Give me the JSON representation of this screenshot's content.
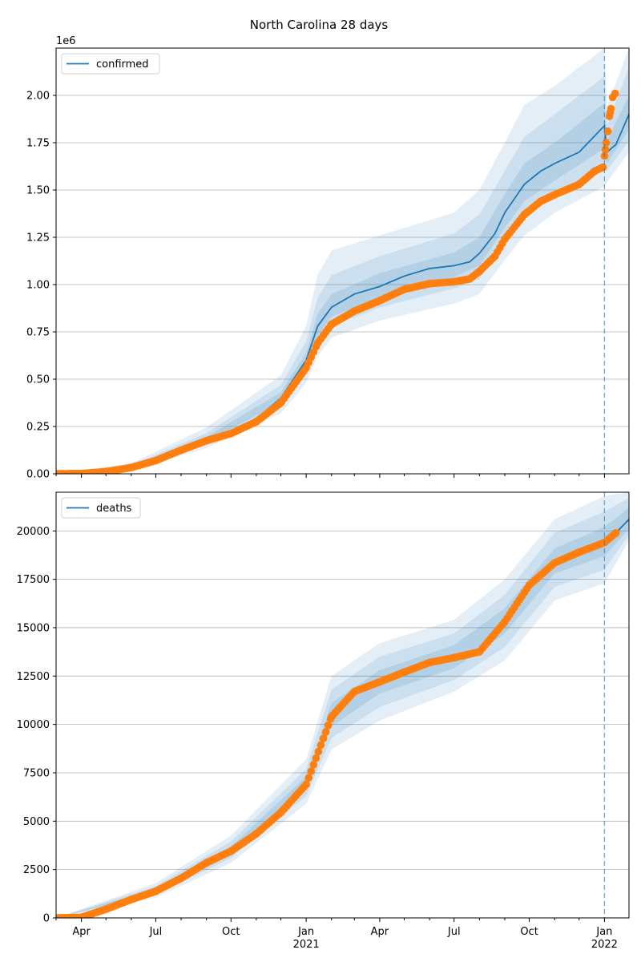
{
  "figure": {
    "title": "North Carolina 28 days"
  },
  "colors": {
    "median_line": "#1f77b4",
    "observed": "#ff7f0e",
    "band": "#1f77b4",
    "grid": "#b0b0b0",
    "forecast_line": "#1f77b4"
  },
  "chart_data": [
    {
      "type": "line",
      "legend": "confirmed",
      "legend_position": "upper-left",
      "multiplier_label": "1e6",
      "x_type": "date",
      "xlim": [
        "2020-03-01",
        "2022-01-31"
      ],
      "ylim": [
        0,
        2250000
      ],
      "y_ticks": [
        0,
        250000,
        500000,
        750000,
        1000000,
        1250000,
        1500000,
        1750000,
        2000000
      ],
      "y_tick_labels": [
        "0.00",
        "0.25",
        "0.50",
        "0.75",
        "1.00",
        "1.25",
        "1.50",
        "1.75",
        "2.00"
      ],
      "grid": "horizontal",
      "forecast_date": "2022-01-01",
      "median": [
        [
          "2020-03-01",
          0
        ],
        [
          "2020-04-01",
          2000
        ],
        [
          "2020-05-01",
          12000
        ],
        [
          "2020-06-01",
          35000
        ],
        [
          "2020-07-01",
          75000
        ],
        [
          "2020-08-01",
          130000
        ],
        [
          "2020-09-01",
          180000
        ],
        [
          "2020-10-01",
          218000
        ],
        [
          "2020-11-01",
          290000
        ],
        [
          "2020-12-01",
          400000
        ],
        [
          "2021-01-01",
          600000
        ],
        [
          "2021-01-15",
          780000
        ],
        [
          "2021-02-01",
          880000
        ],
        [
          "2021-03-01",
          950000
        ],
        [
          "2021-04-01",
          990000
        ],
        [
          "2021-05-01",
          1045000
        ],
        [
          "2021-06-01",
          1085000
        ],
        [
          "2021-07-01",
          1100000
        ],
        [
          "2021-07-20",
          1120000
        ],
        [
          "2021-08-01",
          1165000
        ],
        [
          "2021-08-20",
          1270000
        ],
        [
          "2021-09-01",
          1380000
        ],
        [
          "2021-09-25",
          1530000
        ],
        [
          "2021-10-15",
          1600000
        ],
        [
          "2021-11-01",
          1640000
        ],
        [
          "2021-12-01",
          1700000
        ],
        [
          "2022-01-01",
          1840000
        ],
        [
          "2022-01-04",
          1700000
        ],
        [
          "2022-01-15",
          1740000
        ],
        [
          "2022-01-31",
          1900000
        ]
      ],
      "band_inner": [
        [
          "2020-03-01",
          0,
          0
        ],
        [
          "2020-06-01",
          32000,
          38000
        ],
        [
          "2020-09-01",
          170000,
          195000
        ],
        [
          "2020-12-01",
          375000,
          430000
        ],
        [
          "2021-01-01",
          565000,
          640000
        ],
        [
          "2021-01-15",
          730000,
          845000
        ],
        [
          "2021-02-01",
          830000,
          950000
        ],
        [
          "2021-04-01",
          935000,
          1060000
        ],
        [
          "2021-07-01",
          1040000,
          1170000
        ],
        [
          "2021-08-01",
          1100000,
          1250000
        ],
        [
          "2021-09-01",
          1300000,
          1480000
        ],
        [
          "2021-09-25",
          1440000,
          1640000
        ],
        [
          "2021-11-01",
          1550000,
          1750000
        ],
        [
          "2022-01-01",
          1720000,
          1960000
        ],
        [
          "2022-01-04",
          1640000,
          1760000
        ],
        [
          "2022-01-31",
          1820000,
          2000000
        ]
      ],
      "band_mid": [
        [
          "2020-03-01",
          0,
          0
        ],
        [
          "2020-06-01",
          28000,
          45000
        ],
        [
          "2020-09-01",
          155000,
          215000
        ],
        [
          "2020-12-01",
          350000,
          470000
        ],
        [
          "2021-01-01",
          525000,
          700000
        ],
        [
          "2021-01-15",
          680000,
          930000
        ],
        [
          "2021-02-01",
          780000,
          1050000
        ],
        [
          "2021-04-01",
          880000,
          1150000
        ],
        [
          "2021-07-01",
          980000,
          1270000
        ],
        [
          "2021-08-01",
          1030000,
          1370000
        ],
        [
          "2021-09-01",
          1220000,
          1600000
        ],
        [
          "2021-09-25",
          1360000,
          1780000
        ],
        [
          "2021-11-01",
          1470000,
          1900000
        ],
        [
          "2022-01-01",
          1620000,
          2100000
        ],
        [
          "2022-01-04",
          1600000,
          1840000
        ],
        [
          "2022-01-31",
          1760000,
          2150000
        ]
      ],
      "band_outer": [
        [
          "2020-03-01",
          0,
          0
        ],
        [
          "2020-06-01",
          22000,
          55000
        ],
        [
          "2020-09-01",
          135000,
          245000
        ],
        [
          "2020-12-01",
          320000,
          520000
        ],
        [
          "2021-01-01",
          480000,
          780000
        ],
        [
          "2021-01-15",
          620000,
          1050000
        ],
        [
          "2021-02-01",
          720000,
          1180000
        ],
        [
          "2021-04-01",
          810000,
          1260000
        ],
        [
          "2021-07-01",
          900000,
          1380000
        ],
        [
          "2021-08-01",
          950000,
          1500000
        ],
        [
          "2021-09-01",
          1130000,
          1750000
        ],
        [
          "2021-09-25",
          1260000,
          1950000
        ],
        [
          "2021-11-01",
          1380000,
          2050000
        ],
        [
          "2022-01-01",
          1520000,
          2250000
        ],
        [
          "2022-01-04",
          1540000,
          1940000
        ],
        [
          "2022-01-31",
          1700000,
          2250000
        ]
      ],
      "observed": [
        [
          "2020-03-01",
          0
        ],
        [
          "2020-04-01",
          1500
        ],
        [
          "2020-05-01",
          11000
        ],
        [
          "2020-06-01",
          33000
        ],
        [
          "2020-07-01",
          70000
        ],
        [
          "2020-08-01",
          125000
        ],
        [
          "2020-09-01",
          175000
        ],
        [
          "2020-10-01",
          213000
        ],
        [
          "2020-11-01",
          275000
        ],
        [
          "2020-12-01",
          375000
        ],
        [
          "2021-01-01",
          560000
        ],
        [
          "2021-01-15",
          690000
        ],
        [
          "2021-02-01",
          790000
        ],
        [
          "2021-03-01",
          860000
        ],
        [
          "2021-04-01",
          915000
        ],
        [
          "2021-05-01",
          975000
        ],
        [
          "2021-06-01",
          1005000
        ],
        [
          "2021-07-01",
          1015000
        ],
        [
          "2021-07-20",
          1030000
        ],
        [
          "2021-08-01",
          1070000
        ],
        [
          "2021-08-20",
          1150000
        ],
        [
          "2021-09-01",
          1240000
        ],
        [
          "2021-09-25",
          1370000
        ],
        [
          "2021-10-15",
          1440000
        ],
        [
          "2021-11-01",
          1475000
        ],
        [
          "2021-12-01",
          1530000
        ],
        [
          "2021-12-20",
          1600000
        ],
        [
          "2021-12-30",
          1620000
        ],
        [
          "2022-01-01",
          1680000
        ],
        [
          "2022-01-03",
          1750000
        ],
        [
          "2022-01-05",
          1810000
        ],
        [
          "2022-01-07",
          1890000
        ],
        [
          "2022-01-09",
          1930000
        ],
        [
          "2022-01-11",
          1990000
        ],
        [
          "2022-01-14",
          2010000
        ]
      ]
    },
    {
      "type": "line",
      "legend": "deaths",
      "legend_position": "upper-left",
      "x_type": "date",
      "xlim": [
        "2020-03-01",
        "2022-01-31"
      ],
      "ylim": [
        0,
        22000
      ],
      "y_ticks": [
        0,
        2500,
        5000,
        7500,
        10000,
        12500,
        15000,
        17500,
        20000
      ],
      "y_tick_labels": [
        "0",
        "2500",
        "5000",
        "7500",
        "10000",
        "12500",
        "15000",
        "17500",
        "20000"
      ],
      "grid": "horizontal",
      "forecast_date": "2022-01-01",
      "x_tick_labels": [
        {
          "date": "2020-04-01",
          "label": "Apr",
          "sub": ""
        },
        {
          "date": "2020-07-01",
          "label": "Jul",
          "sub": ""
        },
        {
          "date": "2020-10-01",
          "label": "Oct",
          "sub": ""
        },
        {
          "date": "2021-01-01",
          "label": "Jan",
          "sub": "2021"
        },
        {
          "date": "2021-04-01",
          "label": "Apr",
          "sub": ""
        },
        {
          "date": "2021-07-01",
          "label": "Jul",
          "sub": ""
        },
        {
          "date": "2021-10-01",
          "label": "Oct",
          "sub": ""
        },
        {
          "date": "2022-01-01",
          "label": "Jan",
          "sub": "2022"
        }
      ],
      "median": [
        [
          "2020-03-01",
          0
        ],
        [
          "2020-04-01",
          50
        ],
        [
          "2020-05-01",
          450
        ],
        [
          "2020-06-01",
          1000
        ],
        [
          "2020-07-01",
          1400
        ],
        [
          "2020-08-01",
          2100
        ],
        [
          "2020-09-01",
          2900
        ],
        [
          "2020-10-01",
          3500
        ],
        [
          "2020-11-01",
          4400
        ],
        [
          "2020-12-01",
          5500
        ],
        [
          "2021-01-01",
          7000
        ],
        [
          "2021-02-01",
          10500
        ],
        [
          "2021-03-01",
          11700
        ],
        [
          "2021-04-01",
          12200
        ],
        [
          "2021-05-01",
          12700
        ],
        [
          "2021-06-01",
          13200
        ],
        [
          "2021-07-01",
          13450
        ],
        [
          "2021-08-01",
          13800
        ],
        [
          "2021-09-01",
          15300
        ],
        [
          "2021-10-01",
          17200
        ],
        [
          "2021-11-01",
          18400
        ],
        [
          "2021-12-01",
          18900
        ],
        [
          "2022-01-01",
          19400
        ],
        [
          "2022-01-15",
          19900
        ],
        [
          "2022-01-31",
          20600
        ]
      ],
      "band_inner": [
        [
          "2020-03-01",
          0,
          0
        ],
        [
          "2020-07-01",
          1300,
          1500
        ],
        [
          "2020-10-01",
          3300,
          3700
        ],
        [
          "2021-01-01",
          6700,
          7300
        ],
        [
          "2021-02-01",
          9900,
          11100
        ],
        [
          "2021-04-01",
          11600,
          12800
        ],
        [
          "2021-07-01",
          12900,
          14100
        ],
        [
          "2021-09-01",
          14700,
          16000
        ],
        [
          "2021-11-01",
          17800,
          19100
        ],
        [
          "2022-01-01",
          18700,
          20200
        ],
        [
          "2022-01-31",
          20100,
          21200
        ]
      ],
      "band_mid": [
        [
          "2020-03-01",
          0,
          0
        ],
        [
          "2020-07-01",
          1200,
          1650
        ],
        [
          "2020-10-01",
          3100,
          3950
        ],
        [
          "2021-01-01",
          6300,
          7700
        ],
        [
          "2021-02-01",
          9300,
          11800
        ],
        [
          "2021-04-01",
          10900,
          13500
        ],
        [
          "2021-07-01",
          12300,
          14700
        ],
        [
          "2021-09-01",
          14000,
          16700
        ],
        [
          "2021-11-01",
          17100,
          19900
        ],
        [
          "2022-01-01",
          18000,
          21000
        ],
        [
          "2022-01-31",
          19800,
          21700
        ]
      ],
      "band_outer": [
        [
          "2020-03-01",
          0,
          0
        ],
        [
          "2020-07-01",
          1050,
          1800
        ],
        [
          "2020-10-01",
          2850,
          4250
        ],
        [
          "2021-01-01",
          5900,
          8200
        ],
        [
          "2021-02-01",
          8700,
          12500
        ],
        [
          "2021-04-01",
          10200,
          14200
        ],
        [
          "2021-07-01",
          11700,
          15400
        ],
        [
          "2021-09-01",
          13300,
          17500
        ],
        [
          "2021-11-01",
          16400,
          20600
        ],
        [
          "2022-01-01",
          17300,
          21800
        ],
        [
          "2022-01-31",
          19500,
          22000
        ]
      ],
      "observed": [
        [
          "2020-03-01",
          0
        ],
        [
          "2020-04-01",
          30
        ],
        [
          "2020-05-01",
          450
        ],
        [
          "2020-06-01",
          950
        ],
        [
          "2020-07-01",
          1380
        ],
        [
          "2020-08-01",
          2050
        ],
        [
          "2020-09-01",
          2850
        ],
        [
          "2020-10-01",
          3450
        ],
        [
          "2020-11-01",
          4350
        ],
        [
          "2020-12-01",
          5450
        ],
        [
          "2021-01-01",
          6900
        ],
        [
          "2021-02-01",
          10400
        ],
        [
          "2021-03-01",
          11700
        ],
        [
          "2021-04-01",
          12200
        ],
        [
          "2021-05-01",
          12700
        ],
        [
          "2021-06-01",
          13200
        ],
        [
          "2021-07-01",
          13450
        ],
        [
          "2021-08-01",
          13750
        ],
        [
          "2021-09-01",
          15300
        ],
        [
          "2021-10-01",
          17200
        ],
        [
          "2021-11-01",
          18350
        ],
        [
          "2021-12-01",
          18900
        ],
        [
          "2022-01-01",
          19400
        ],
        [
          "2022-01-15",
          19900
        ]
      ]
    }
  ]
}
